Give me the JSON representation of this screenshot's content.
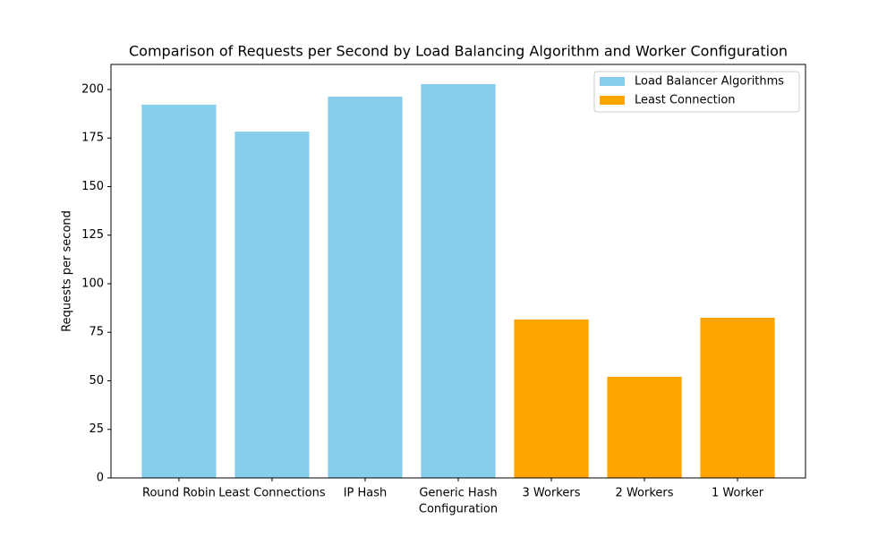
{
  "chart_data": {
    "type": "bar",
    "title": "Comparison of Requests per Second by Load Balancing Algorithm and Worker Configuration",
    "x_label": "Configuration",
    "y_label": "Requests per second",
    "categories": [
      "Round Robin",
      "Least Connections",
      "IP Hash",
      "Generic Hash",
      "3 Workers",
      "2 Workers",
      "1 Worker"
    ],
    "series": [
      {
        "name": "Load Balancer Algorithms",
        "color": "#87ceeb",
        "values": [
          192.2,
          178.3,
          196.3,
          202.8,
          null,
          null,
          null
        ]
      },
      {
        "name": "Least Connection",
        "color": "#ffa500",
        "values": [
          null,
          null,
          null,
          null,
          81.6,
          52.1,
          82.5
        ]
      }
    ],
    "ylim": [
      0,
      212.9
    ],
    "yticks": [
      0,
      25,
      50,
      75,
      100,
      125,
      150,
      175,
      200
    ],
    "legend": "upper right"
  }
}
